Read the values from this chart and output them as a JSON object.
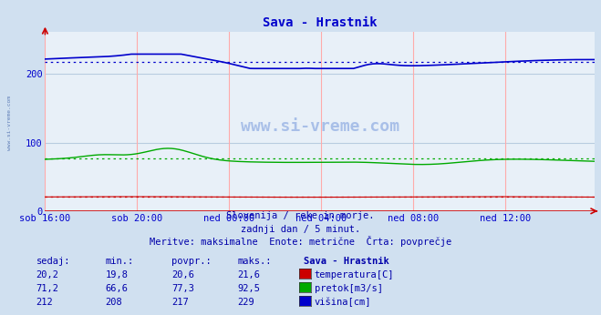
{
  "title": "Sava - Hrastnik",
  "title_color": "#0000cc",
  "bg_color": "#d0e0f0",
  "plot_bg_color": "#e8f0f8",
  "grid_color_h": "#b8cce0",
  "grid_color_v": "#ffaaaa",
  "xlabel_color": "#0000cc",
  "ylabel_color": "#0000cc",
  "x_tick_labels": [
    "sob 16:00",
    "sob 20:00",
    "ned 00:00",
    "ned 04:00",
    "ned 08:00",
    "ned 12:00"
  ],
  "x_tick_positions": [
    0,
    48,
    96,
    144,
    192,
    240
  ],
  "y_ticks": [
    0,
    100,
    200
  ],
  "y_max": 262,
  "y_min": 0,
  "n_points": 288,
  "temp_color": "#cc0000",
  "flow_color": "#00aa00",
  "height_color": "#0000cc",
  "temp_avg": 20.6,
  "flow_avg": 77.3,
  "height_avg": 217,
  "temp_min": 19.8,
  "temp_max": 21.6,
  "temp_sedaj": 20.2,
  "flow_min": 66.6,
  "flow_max": 92.5,
  "flow_sedaj": 71.2,
  "height_min": 208,
  "height_max": 229,
  "height_sedaj": 212,
  "subtitle1": "Slovenija / reke in morje.",
  "subtitle2": "zadnji dan / 5 minut.",
  "subtitle3": "Meritve: maksimalne  Enote: metrične  Črta: povprečje",
  "text_color": "#0000aa",
  "watermark": "www.si-vreme.com",
  "table_headers": [
    "sedaj:",
    "min.:",
    "povpr.:",
    "maks.:",
    "Sava - Hrastnik"
  ]
}
